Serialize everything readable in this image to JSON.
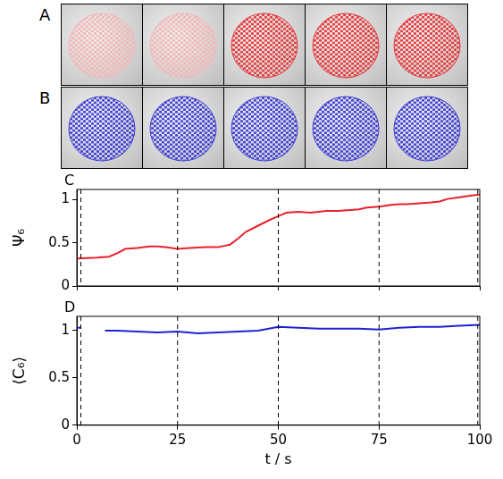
{
  "images": [
    {
      "label": "A",
      "colors": [
        "#f5b5b5",
        "#f5b5b5",
        "#e8383c",
        "#e8383c",
        "#e8383c"
      ]
    },
    {
      "label": "B",
      "colors": [
        "#3f3fd8",
        "#3f3fd8",
        "#3f3fd8",
        "#3f3fd8",
        "#3f3fd8"
      ]
    }
  ],
  "chart_data": [
    {
      "type": "line",
      "annotations": [
        "C"
      ],
      "y_label": "Ψ₆",
      "xlim": [
        0,
        100
      ],
      "xticks": [
        0,
        25,
        50,
        75,
        100
      ],
      "ylim": [
        0,
        1.12
      ],
      "yticks": [
        0,
        0.5,
        1
      ],
      "tick_labels": "y",
      "frame_times": [
        1,
        25,
        50,
        75,
        99.5
      ],
      "color": "#e8202a",
      "x": [
        0,
        5,
        8,
        10,
        12,
        15,
        18,
        20,
        22,
        25,
        28,
        32,
        35,
        38,
        40,
        42,
        45,
        48,
        50,
        52,
        55,
        58,
        60,
        62,
        65,
        70,
        72,
        75,
        78,
        80,
        82,
        85,
        88,
        90,
        92,
        95,
        98,
        100
      ],
      "values": [
        0.32,
        0.33,
        0.34,
        0.38,
        0.43,
        0.44,
        0.46,
        0.46,
        0.45,
        0.43,
        0.44,
        0.45,
        0.45,
        0.48,
        0.55,
        0.63,
        0.7,
        0.77,
        0.81,
        0.85,
        0.86,
        0.85,
        0.86,
        0.87,
        0.87,
        0.89,
        0.91,
        0.92,
        0.94,
        0.95,
        0.95,
        0.96,
        0.97,
        0.98,
        1.01,
        1.03,
        1.05,
        1.06
      ]
    },
    {
      "type": "line",
      "annotations": [
        "D"
      ],
      "y_label": "⟨C₆⟩",
      "x_label": "t / s",
      "xlim": [
        0,
        100
      ],
      "xticks": [
        0,
        25,
        50,
        75,
        100
      ],
      "ylim": [
        0,
        1.15
      ],
      "yticks": [
        0,
        0.5,
        1
      ],
      "frame_times": [
        1,
        25,
        50,
        75,
        99.5
      ],
      "color": "#2020d0",
      "x": [
        0,
        1,
        3,
        7,
        10,
        15,
        20,
        25,
        30,
        35,
        40,
        45,
        50,
        55,
        60,
        65,
        70,
        75,
        80,
        85,
        90,
        95,
        100
      ],
      "values": [
        1.03,
        1.03,
        null,
        1.0,
        1.0,
        0.99,
        0.98,
        0.99,
        0.97,
        0.98,
        0.99,
        1.0,
        1.04,
        1.03,
        1.02,
        1.02,
        1.02,
        1.01,
        1.03,
        1.04,
        1.04,
        1.05,
        1.06
      ]
    }
  ]
}
